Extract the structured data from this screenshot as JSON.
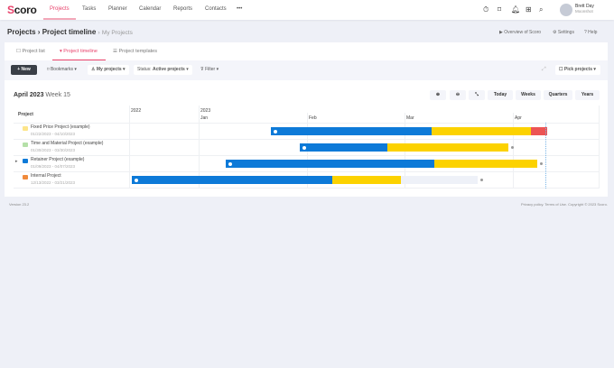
{
  "nav": {
    "logo": "Scoro",
    "items": [
      "Projects",
      "Tasks",
      "Planner",
      "Calendar",
      "Reports",
      "Contacts",
      "•••"
    ],
    "active": "Projects",
    "user": {
      "name": "Brett Day",
      "company": "Moonshot"
    }
  },
  "breadcrumb": {
    "root": "Projects",
    "current": "Project timeline",
    "view": "My Projects"
  },
  "toplinks": {
    "overview": "Overview of Scoro",
    "settings": "Settings",
    "help": "Help"
  },
  "tabs": [
    {
      "label": "Project list"
    },
    {
      "label": "Project timeline",
      "active": true
    },
    {
      "label": "Project templates"
    }
  ],
  "toolbar": {
    "new": "+ New",
    "bookmarks": "Bookmarks",
    "my_projects": "My projects",
    "status_label": "Status:",
    "status_value": "Active projects",
    "filter": "Filter",
    "pick_projects": "Pick projects"
  },
  "timeline": {
    "month": "April 2023",
    "week": "Week 15",
    "periods": [
      "Today",
      "Weeks",
      "Quarters",
      "Years"
    ],
    "column_header": "Project",
    "years": [
      "2022",
      "2023"
    ],
    "months": [
      "Jan",
      "Feb",
      "Mar",
      "Apr"
    ]
  },
  "projects": [
    {
      "name": "Fixed Price Project (example)",
      "dates": "01/22/2023 - 04/10/2023",
      "color": "#fde58a"
    },
    {
      "name": "Time and Material Project (example)",
      "dates": "01/30/2023 - 03/30/2023",
      "color": "#b5e0a8"
    },
    {
      "name": "Retainer Project (example)",
      "dates": "01/09/2023 - 04/07/2023",
      "color": "#0d7ad8"
    },
    {
      "name": "Internal Project",
      "dates": "12/13/2022 - 03/21/2023",
      "color": "#f08a3c"
    }
  ],
  "colors": {
    "accent": "#e8416a",
    "done": "#0d7ad8",
    "planned": "#fcd200",
    "overdue": "#ec5454",
    "remaining": "#eef1f8"
  },
  "footer": {
    "version": "Version 23.2",
    "legal": "Privacy policy. Terms of Use. Copyright © 2023 Scoro."
  }
}
